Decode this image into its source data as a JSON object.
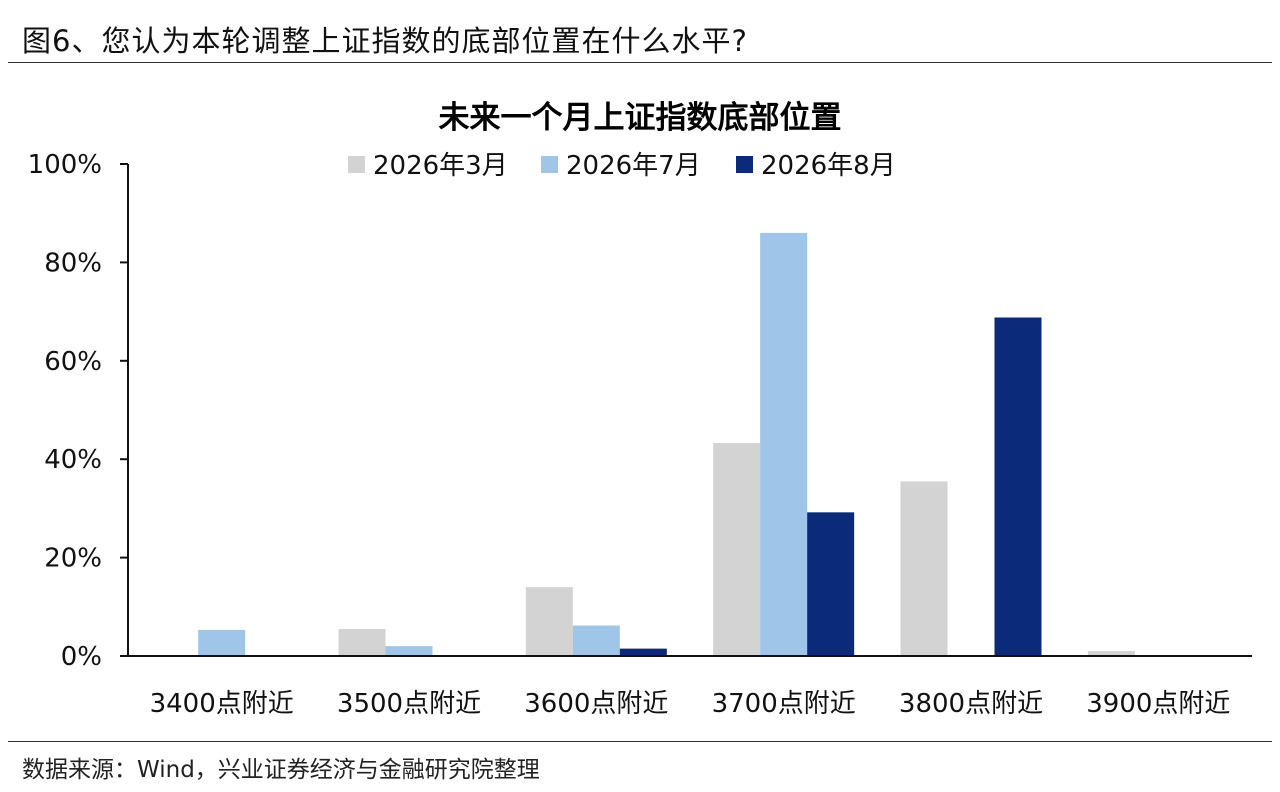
{
  "figure": {
    "title": "图6、您认为本轮调整上证指数的底部位置在什么水平?",
    "source": "数据来源：Wind，兴业证券经济与金融研究院整理"
  },
  "chart_data": {
    "type": "bar",
    "title": "未来一个月上证指数底部位置",
    "xlabel": "",
    "ylabel": "",
    "categories": [
      "3400点附近",
      "3500点附近",
      "3600点附近",
      "3700点附近",
      "3800点附近",
      "3900点附近"
    ],
    "series": [
      {
        "name": "2026年3月",
        "color": "#d3d3d3",
        "values": [
          0,
          5.5,
          14,
          43.3,
          35.5,
          1
        ]
      },
      {
        "name": "2026年7月",
        "color": "#9fc5e8",
        "values": [
          5.3,
          2,
          6.2,
          86,
          0,
          0
        ]
      },
      {
        "name": "2026年8月",
        "color": "#0b2a7a",
        "values": [
          0,
          0,
          1.5,
          29.2,
          68.8,
          0
        ]
      }
    ],
    "ylim": [
      0,
      100
    ],
    "yticks": [
      "0%",
      "20%",
      "40%",
      "60%",
      "80%",
      "100%"
    ],
    "ytick_values": [
      0,
      20,
      40,
      60,
      80,
      100
    ],
    "grid": false,
    "legend_position": "top-center"
  }
}
